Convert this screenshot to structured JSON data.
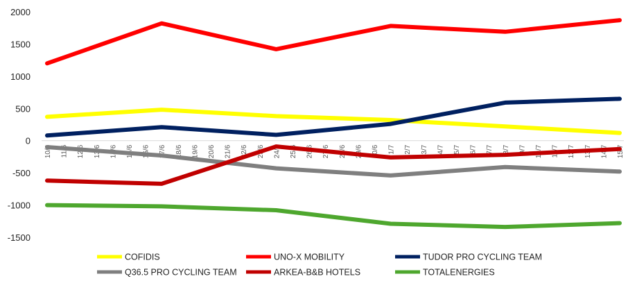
{
  "chart_data": {
    "type": "line",
    "title": "",
    "xlabel": "",
    "ylabel": "",
    "ylim": [
      -1500,
      2000
    ],
    "yticks": [
      2000,
      1500,
      1000,
      500,
      0,
      -500,
      -1000,
      -1500
    ],
    "grid": false,
    "legend_position": "bottom",
    "x": [
      "10/6",
      "11/6",
      "12/6",
      "13/6",
      "14/6",
      "15/6",
      "16/6",
      "17/6",
      "18/6",
      "19/6",
      "20/6",
      "21/6",
      "22/6",
      "23/6",
      "24/6",
      "25/6",
      "26/6",
      "27/6",
      "28/6",
      "29/6",
      "30/6",
      "1/7",
      "2/7",
      "3/7",
      "4/7",
      "5/7",
      "6/7",
      "7/7",
      "8/7",
      "9/7",
      "10/7",
      "11/7",
      "12/7",
      "13/7",
      "14/7",
      "15/7"
    ],
    "series": [
      {
        "name": "COFIDIS",
        "color": "#ffff00",
        "points": [
          {
            "x": "10/6",
            "y": 370
          },
          {
            "x": "17/6",
            "y": 480
          },
          {
            "x": "24/6",
            "y": 380
          },
          {
            "x": "1/7",
            "y": 320
          },
          {
            "x": "8/7",
            "y": 220
          },
          {
            "x": "15/7",
            "y": 120
          }
        ]
      },
      {
        "name": "UNO-X MOBILITY",
        "color": "#ff0000",
        "points": [
          {
            "x": "10/6",
            "y": 1200
          },
          {
            "x": "17/6",
            "y": 1820
          },
          {
            "x": "24/6",
            "y": 1420
          },
          {
            "x": "1/7",
            "y": 1780
          },
          {
            "x": "8/7",
            "y": 1690
          },
          {
            "x": "15/7",
            "y": 1870
          }
        ]
      },
      {
        "name": "TUDOR PRO CYCLING TEAM",
        "color": "#002060",
        "points": [
          {
            "x": "10/6",
            "y": 80
          },
          {
            "x": "17/6",
            "y": 210
          },
          {
            "x": "24/6",
            "y": 90
          },
          {
            "x": "1/7",
            "y": 260
          },
          {
            "x": "8/7",
            "y": 590
          },
          {
            "x": "15/7",
            "y": 650
          }
        ]
      },
      {
        "name": "Q36.5 PRO CYCLING TEAM",
        "color": "#7f7f7f",
        "points": [
          {
            "x": "10/6",
            "y": -100
          },
          {
            "x": "17/6",
            "y": -230
          },
          {
            "x": "24/6",
            "y": -430
          },
          {
            "x": "1/7",
            "y": -540
          },
          {
            "x": "8/7",
            "y": -410
          },
          {
            "x": "15/7",
            "y": -480
          }
        ]
      },
      {
        "name": "ARKEA-B&B HOTELS",
        "color": "#c00000",
        "points": [
          {
            "x": "10/6",
            "y": -620
          },
          {
            "x": "17/6",
            "y": -670
          },
          {
            "x": "24/6",
            "y": -90
          },
          {
            "x": "1/7",
            "y": -260
          },
          {
            "x": "8/7",
            "y": -220
          },
          {
            "x": "15/7",
            "y": -130
          }
        ]
      },
      {
        "name": "TOTALENERGIES",
        "color": "#4ea72e",
        "points": [
          {
            "x": "10/6",
            "y": -1000
          },
          {
            "x": "17/6",
            "y": -1020
          },
          {
            "x": "24/6",
            "y": -1080
          },
          {
            "x": "1/7",
            "y": -1290
          },
          {
            "x": "8/7",
            "y": -1340
          },
          {
            "x": "15/7",
            "y": -1280
          }
        ]
      }
    ]
  }
}
